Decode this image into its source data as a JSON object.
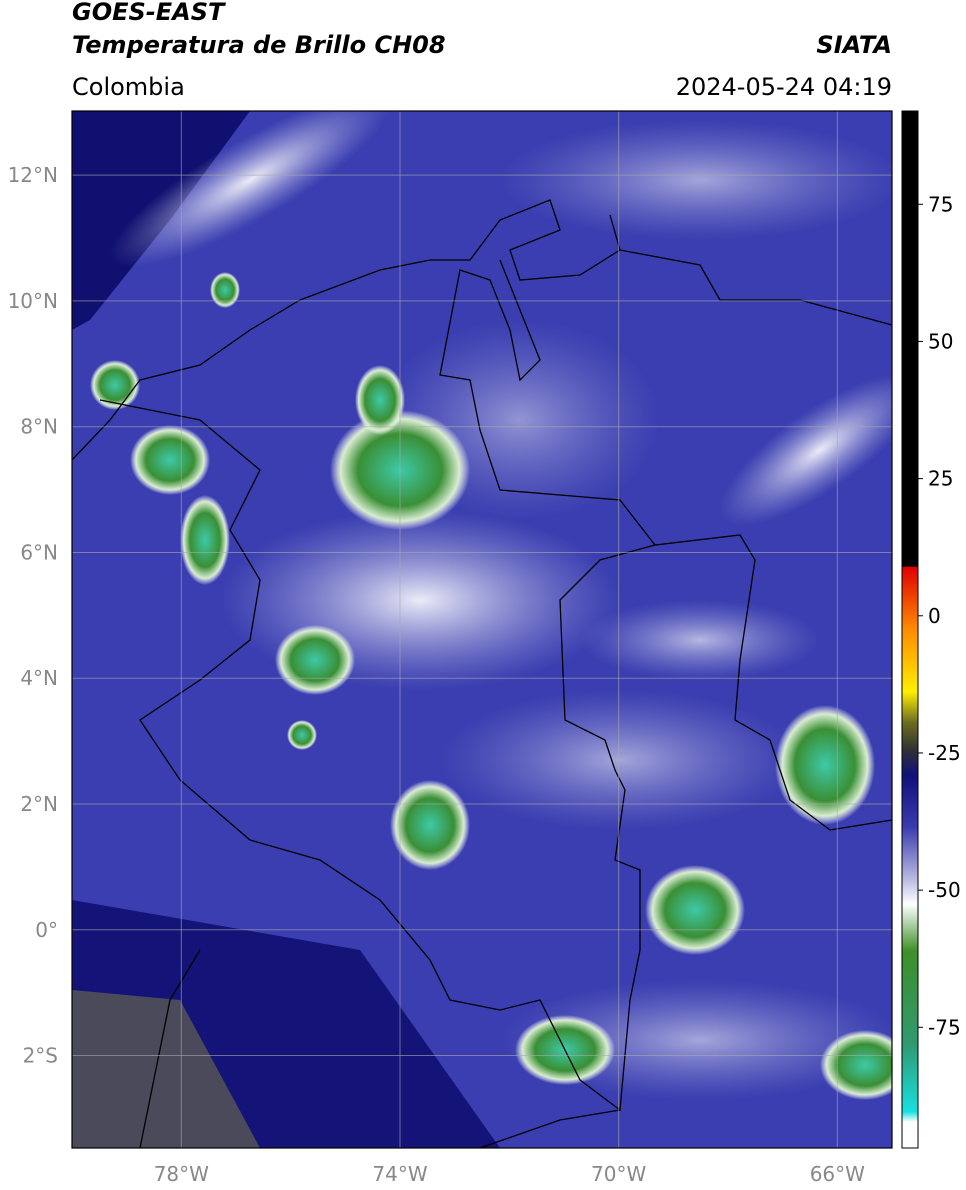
{
  "header": {
    "satellite": "GOES-EAST",
    "product": "Temperatura de Brillo CH08",
    "source": "SIATA",
    "region": "Colombia",
    "datetime": "2024-05-24 04:19"
  },
  "map": {
    "xlim": [
      -80,
      -65
    ],
    "ylim": [
      -3.47,
      13.02
    ],
    "xticks": [
      {
        "value": -78,
        "label": "78°W"
      },
      {
        "value": -74,
        "label": "74°W"
      },
      {
        "value": -70,
        "label": "70°W"
      },
      {
        "value": -66,
        "label": "66°W"
      }
    ],
    "yticks": [
      {
        "value": 12,
        "label": "12°N"
      },
      {
        "value": 10,
        "label": "10°N"
      },
      {
        "value": 8,
        "label": "8°N"
      },
      {
        "value": 6,
        "label": "6°N"
      },
      {
        "value": 4,
        "label": "4°N"
      },
      {
        "value": 2,
        "label": "2°N"
      },
      {
        "value": 0,
        "label": "0°"
      },
      {
        "value": -2,
        "label": "2°S"
      }
    ]
  },
  "colorbar": {
    "lim": [
      -97,
      92
    ],
    "ticks": [
      75,
      50,
      25,
      0,
      -25,
      -50,
      -75
    ]
  }
}
